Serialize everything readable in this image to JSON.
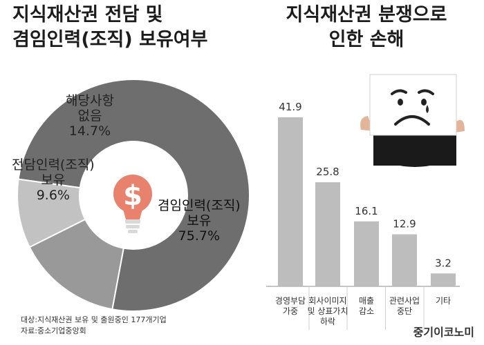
{
  "left_title": [
    "지식재산권 전담 및",
    "겸임인력(조직) 보유여부"
  ],
  "right_title": [
    "지식재산권 분쟁으로",
    "인한 손해"
  ],
  "chart_data": [
    {
      "type": "pie",
      "title": "지식재산권 전담 및 겸임인력(조직) 보유여부",
      "slices": [
        {
          "label": [
            "겸임인력(조직)",
            "보유"
          ],
          "value": 75.7,
          "display": "75.7%",
          "color": "#6e6e6e"
        },
        {
          "label": [
            "해당사항",
            "없음"
          ],
          "value": 14.7,
          "display": "14.7%",
          "color": "#999999"
        },
        {
          "label": [
            "전담인력(조직)",
            "보유"
          ],
          "value": 9.6,
          "display": "9.6%",
          "color": "#c2c2c2"
        }
      ]
    },
    {
      "type": "bar",
      "title": "지식재산권 분쟁으로 인한 손해",
      "categories": [
        [
          "경영부담",
          "가중"
        ],
        [
          "회사이미지",
          "및 상표가치",
          "하락"
        ],
        [
          "매출",
          "감소"
        ],
        [
          "관련사업",
          "중단"
        ],
        [
          "기타"
        ]
      ],
      "values": [
        41.9,
        25.8,
        16.1,
        12.9,
        3.2
      ],
      "value_labels": [
        "41.9",
        "25.8",
        "16.1",
        "12.9",
        "3.2"
      ],
      "ylim": [
        0,
        45
      ],
      "bar_color": "#bdbdbd"
    }
  ],
  "footnotes": [
    "대상:지식재산권 보유 및 출원중인 177개기업",
    "자료:중소기업중앙회"
  ],
  "brand": "중기이코노미",
  "colors": {
    "bulb": "#e8826c",
    "bulb_base": "#d9d9d9",
    "sad_face_card": "#ffffff"
  },
  "icons": {
    "center_icon": "lightbulb-dollar-icon",
    "photo": "sad-face-sign-person"
  }
}
